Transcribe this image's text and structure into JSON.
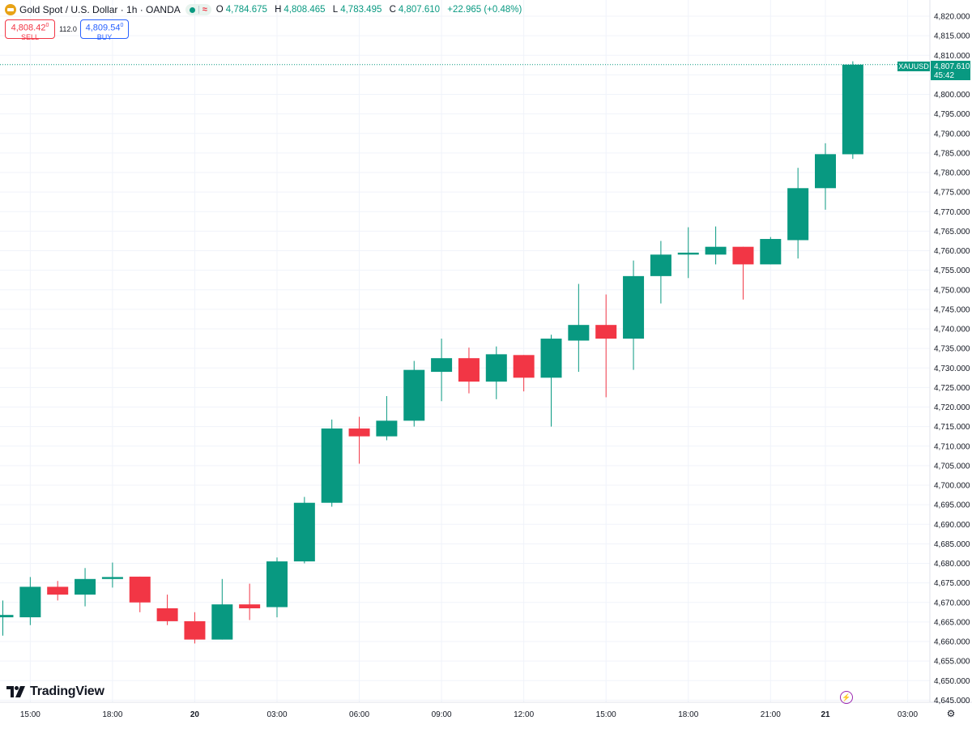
{
  "header": {
    "title": "Gold Spot / U.S. Dollar · 1h · OANDA",
    "market_badge_symbol": "≈",
    "ohlc": {
      "o_label": "O",
      "o": "4,784.675",
      "h_label": "H",
      "h": "4,808.465",
      "l_label": "L",
      "l": "4,783.495",
      "c_label": "C",
      "c": "4,807.610",
      "change": "+22.965 (+0.48%)"
    }
  },
  "trade": {
    "sell_price": "4,808.42",
    "sell_sup": "0",
    "sell_label": "SELL",
    "spread": "112.0",
    "buy_price": "4,809.54",
    "buy_sup": "0",
    "buy_label": "BUY"
  },
  "logo": {
    "text": "TradingView"
  },
  "icons": {
    "symbol": "gold-coin-icon",
    "bolt": "lightning-icon",
    "settings": "gear-icon"
  },
  "colors": {
    "up": "#089981",
    "down": "#f23645",
    "grid": "#f0f3fa",
    "text": "#131722"
  },
  "chart_data": {
    "type": "candlestick",
    "symbol": "XAUUSD",
    "interval": "1h",
    "last_price": {
      "label": "XAUUSD",
      "value": "4,807.610",
      "countdown": "45:42",
      "price": 4807.61
    },
    "ylim": [
      4643,
      4822
    ],
    "y_ticks": [
      4820,
      4815,
      4810,
      4805,
      4800,
      4795,
      4790,
      4785,
      4780,
      4775,
      4770,
      4765,
      4760,
      4755,
      4750,
      4745,
      4740,
      4735,
      4730,
      4725,
      4720,
      4715,
      4710,
      4705,
      4700,
      4695,
      4690,
      4685,
      4680,
      4675,
      4670,
      4665,
      4660,
      4655,
      4650,
      4645
    ],
    "y_tick_labels": [
      "4,820.000",
      "4,815.000",
      "4,810.000",
      "4,805.000",
      "4,800.000",
      "4,795.000",
      "4,790.000",
      "4,785.000",
      "4,780.000",
      "4,775.000",
      "4,770.000",
      "4,765.000",
      "4,760.000",
      "4,755.000",
      "4,750.000",
      "4,745.000",
      "4,740.000",
      "4,735.000",
      "4,730.000",
      "4,725.000",
      "4,720.000",
      "4,715.000",
      "4,710.000",
      "4,705.000",
      "4,700.000",
      "4,695.000",
      "4,690.000",
      "4,685.000",
      "4,680.000",
      "4,675.000",
      "4,670.000",
      "4,665.000",
      "4,660.000",
      "4,655.000",
      "4,650.000",
      "4,645.000"
    ],
    "x_ticks": [
      {
        "label": "15:00",
        "i": 1
      },
      {
        "label": "18:00",
        "i": 4
      },
      {
        "label": "20",
        "i": 7
      },
      {
        "label": "03:00",
        "i": 10
      },
      {
        "label": "06:00",
        "i": 13
      },
      {
        "label": "09:00",
        "i": 16
      },
      {
        "label": "12:00",
        "i": 19
      },
      {
        "label": "15:00",
        "i": 22
      },
      {
        "label": "18:00",
        "i": 25
      },
      {
        "label": "21:00",
        "i": 28
      },
      {
        "label": "21",
        "i": 30
      },
      {
        "label": "03:00",
        "i": 33
      }
    ],
    "candles": [
      {
        "o": 4666.2,
        "h": 4670.5,
        "l": 4661.5,
        "c": 4666.8
      },
      {
        "o": 4666.2,
        "h": 4676.5,
        "l": 4664.2,
        "c": 4674.0
      },
      {
        "o": 4674.0,
        "h": 4675.5,
        "l": 4670.5,
        "c": 4672.0
      },
      {
        "o": 4672.0,
        "h": 4678.8,
        "l": 4669.0,
        "c": 4676.0
      },
      {
        "o": 4676.0,
        "h": 4680.2,
        "l": 4673.8,
        "c": 4676.5
      },
      {
        "o": 4676.6,
        "h": 4676.6,
        "l": 4667.5,
        "c": 4670.0
      },
      {
        "o": 4668.5,
        "h": 4672.0,
        "l": 4664.2,
        "c": 4665.2
      },
      {
        "o": 4665.2,
        "h": 4667.5,
        "l": 4659.5,
        "c": 4660.5
      },
      {
        "o": 4660.5,
        "h": 4676.0,
        "l": 4660.5,
        "c": 4669.5
      },
      {
        "o": 4669.5,
        "h": 4674.8,
        "l": 4665.5,
        "c": 4668.5
      },
      {
        "o": 4668.8,
        "h": 4681.5,
        "l": 4666.2,
        "c": 4680.5
      },
      {
        "o": 4680.5,
        "h": 4697.0,
        "l": 4680.0,
        "c": 4695.5
      },
      {
        "o": 4695.5,
        "h": 4716.8,
        "l": 4694.5,
        "c": 4714.5
      },
      {
        "o": 4714.5,
        "h": 4717.5,
        "l": 4705.5,
        "c": 4712.5
      },
      {
        "o": 4712.5,
        "h": 4722.8,
        "l": 4711.5,
        "c": 4716.5
      },
      {
        "o": 4716.5,
        "h": 4731.8,
        "l": 4715.0,
        "c": 4729.5
      },
      {
        "o": 4729.0,
        "h": 4737.5,
        "l": 4721.5,
        "c": 4732.5
      },
      {
        "o": 4732.5,
        "h": 4735.2,
        "l": 4723.5,
        "c": 4726.5
      },
      {
        "o": 4726.5,
        "h": 4735.5,
        "l": 4722.0,
        "c": 4733.5
      },
      {
        "o": 4733.3,
        "h": 4733.3,
        "l": 4724.0,
        "c": 4727.5
      },
      {
        "o": 4727.5,
        "h": 4738.5,
        "l": 4715.0,
        "c": 4737.5
      },
      {
        "o": 4737.0,
        "h": 4751.5,
        "l": 4729.0,
        "c": 4741.0
      },
      {
        "o": 4741.0,
        "h": 4748.8,
        "l": 4722.5,
        "c": 4737.5
      },
      {
        "o": 4737.5,
        "h": 4757.5,
        "l": 4729.5,
        "c": 4753.5
      },
      {
        "o": 4753.5,
        "h": 4762.5,
        "l": 4746.5,
        "c": 4759.0
      },
      {
        "o": 4759.0,
        "h": 4766.0,
        "l": 4753.0,
        "c": 4759.5
      },
      {
        "o": 4759.0,
        "h": 4766.2,
        "l": 4756.5,
        "c": 4761.0
      },
      {
        "o": 4761.0,
        "h": 4761.0,
        "l": 4747.5,
        "c": 4756.5
      },
      {
        "o": 4756.5,
        "h": 4763.5,
        "l": 4756.5,
        "c": 4763.0
      },
      {
        "o": 4762.7,
        "h": 4781.2,
        "l": 4758.0,
        "c": 4776.0
      },
      {
        "o": 4776.0,
        "h": 4787.5,
        "l": 4770.5,
        "c": 4784.7
      },
      {
        "o": 4784.675,
        "h": 4808.465,
        "l": 4783.495,
        "c": 4807.61
      }
    ]
  }
}
